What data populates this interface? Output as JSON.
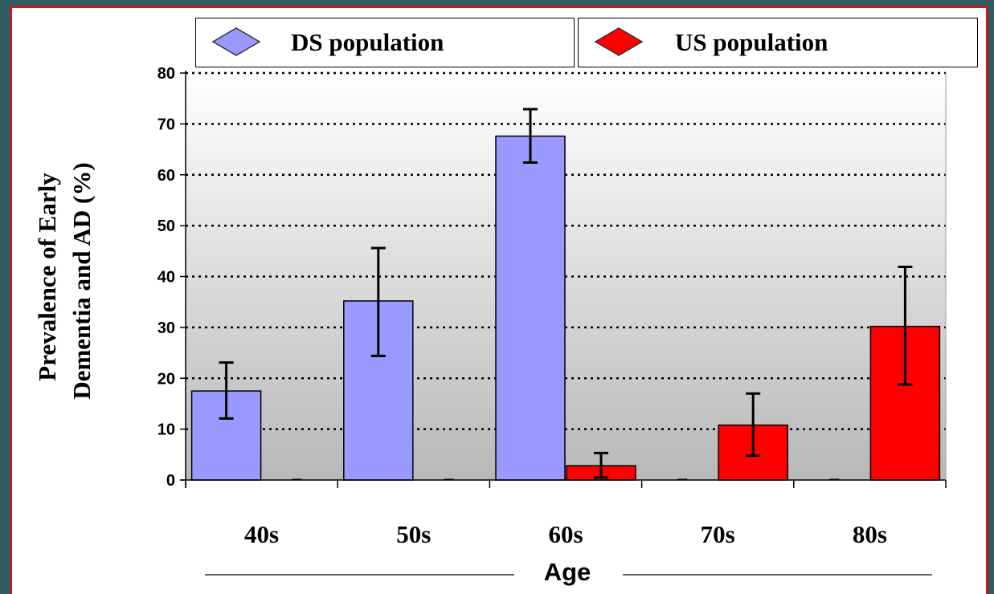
{
  "legend": [
    {
      "label": "DS population",
      "color": "#9999ff"
    },
    {
      "label": "US population",
      "color": "#ff0000"
    }
  ],
  "chart_data": {
    "type": "bar",
    "categories": [
      "40s",
      "50s",
      "60s",
      "70s",
      "80s"
    ],
    "series": [
      {
        "name": "DS population",
        "color": "#9999ff",
        "values": [
          17.5,
          35.2,
          67.6,
          0,
          0
        ],
        "error_low": [
          12.1,
          24.4,
          62.4,
          0,
          0
        ],
        "error_high": [
          23.1,
          45.6,
          72.9,
          0,
          0
        ]
      },
      {
        "name": "US population",
        "color": "#ff0000",
        "values": [
          0,
          0,
          2.8,
          10.8,
          30.2
        ],
        "error_low": [
          0,
          0,
          0.5,
          4.8,
          18.8
        ],
        "error_high": [
          0,
          0,
          5.3,
          17.0,
          41.9
        ]
      }
    ],
    "ylabel_line1": "Prevalence of   Early",
    "ylabel_line2": "Dementia and AD (%)",
    "xlabel": "Age",
    "ylim": [
      0,
      80
    ],
    "yticks": [
      0,
      10,
      20,
      30,
      40,
      50,
      60,
      70,
      80
    ],
    "grid": true,
    "legend_position": "top"
  }
}
